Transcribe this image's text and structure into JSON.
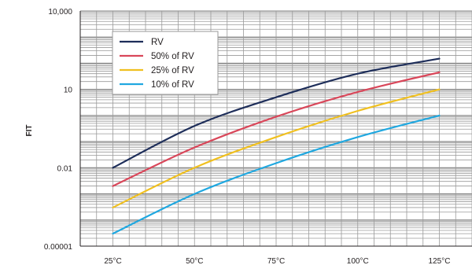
{
  "chart_data": {
    "type": "line",
    "title": "",
    "xlabel": "",
    "ylabel": "FIT",
    "yscale": "log",
    "ylim": [
      1e-05,
      10000
    ],
    "yticks": [
      {
        "value": 10000,
        "label": "10,000"
      },
      {
        "value": 10,
        "label": "10"
      },
      {
        "value": 0.01,
        "label": "0.01"
      },
      {
        "value": 1e-05,
        "label": "0.00001"
      }
    ],
    "xlim": [
      15,
      135
    ],
    "x": [
      25,
      50,
      75,
      100,
      125
    ],
    "xtick_labels": [
      "25°C",
      "50°C",
      "75°C",
      "100°C",
      "125°C"
    ],
    "grid": true,
    "legend_position": "top-left",
    "series": [
      {
        "name": "RV",
        "color": "#1e2e5a",
        "values": [
          0.01,
          0.4,
          5,
          40,
          150
        ]
      },
      {
        "name": "50% of RV",
        "color": "#d9475a",
        "values": [
          0.002,
          0.06,
          0.9,
          8,
          45
        ]
      },
      {
        "name": "25% of RV",
        "color": "#f0c020",
        "values": [
          0.0003,
          0.01,
          0.15,
          1.5,
          10
        ]
      },
      {
        "name": "10% of RV",
        "color": "#20a8e0",
        "values": [
          3e-05,
          0.001,
          0.015,
          0.15,
          1
        ]
      }
    ]
  }
}
